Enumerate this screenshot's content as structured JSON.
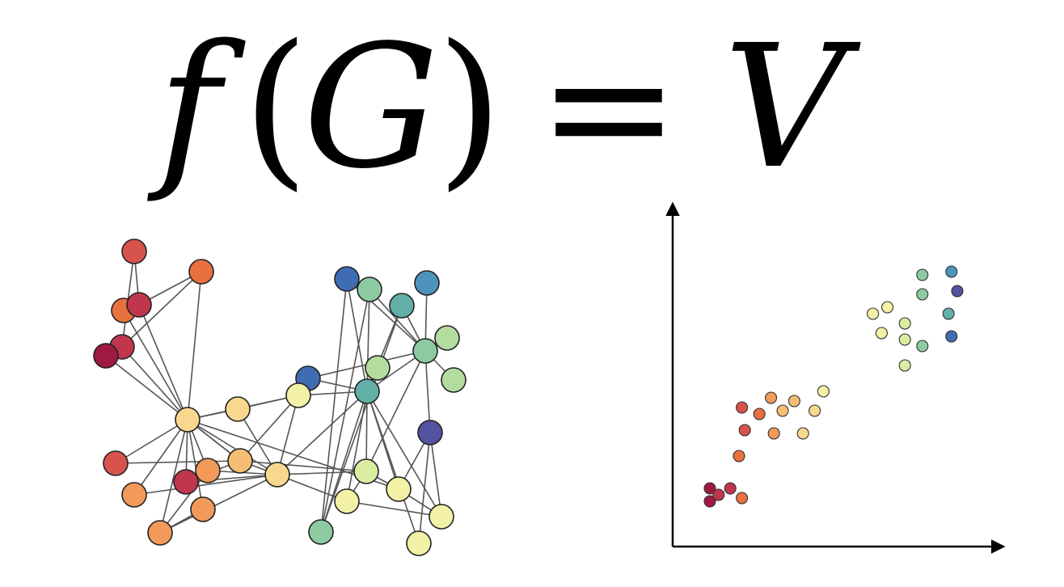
{
  "formula": {
    "f": "f",
    "lparen": "(",
    "G": "G",
    "rparen": ")",
    "eq": "=",
    "V": "V"
  },
  "colors": {
    "c1": "#9e1a42",
    "c2": "#c0374d",
    "c3": "#d6544b",
    "c4": "#e8713f",
    "c5": "#f19a5a",
    "c6": "#f5bd73",
    "c7": "#f7d88e",
    "c8": "#f3f1a6",
    "c9": "#d8eda2",
    "c10": "#b3dd9e",
    "c11": "#8dcaa2",
    "c12": "#62b0a8",
    "c13": "#4d93bb",
    "c14": "#3f6cb3",
    "c15": "#5453a1"
  },
  "graph": {
    "nodes": [
      {
        "id": 0,
        "color": "c3"
      },
      {
        "id": 1,
        "color": "c4"
      },
      {
        "id": 2,
        "color": "c4"
      },
      {
        "id": 3,
        "color": "c2"
      },
      {
        "id": 4,
        "color": "c2"
      },
      {
        "id": 5,
        "color": "c1"
      },
      {
        "id": 6,
        "color": "c7"
      },
      {
        "id": 7,
        "color": "c7"
      },
      {
        "id": 8,
        "color": "c3"
      },
      {
        "id": 9,
        "color": "c5"
      },
      {
        "id": 10,
        "color": "c2"
      },
      {
        "id": 11,
        "color": "c5"
      },
      {
        "id": 12,
        "color": "c6"
      },
      {
        "id": 13,
        "color": "c5"
      },
      {
        "id": 14,
        "color": "c5"
      },
      {
        "id": 15,
        "color": "c7"
      },
      {
        "id": 16,
        "color": "c14"
      },
      {
        "id": 17,
        "color": "c11"
      },
      {
        "id": 18,
        "color": "c13"
      },
      {
        "id": 19,
        "color": "c12"
      },
      {
        "id": 20,
        "color": "c10"
      },
      {
        "id": 21,
        "color": "c10"
      },
      {
        "id": 22,
        "color": "c11"
      },
      {
        "id": 23,
        "color": "c10"
      },
      {
        "id": 24,
        "color": "c14"
      },
      {
        "id": 25,
        "color": "c8"
      },
      {
        "id": 26,
        "color": "c12"
      },
      {
        "id": 27,
        "color": "c15"
      },
      {
        "id": 28,
        "color": "c9"
      },
      {
        "id": 29,
        "color": "c8"
      },
      {
        "id": 30,
        "color": "c8"
      },
      {
        "id": 31,
        "color": "c11"
      },
      {
        "id": 32,
        "color": "c8"
      },
      {
        "id": 33,
        "color": "c8"
      }
    ],
    "edges": [
      [
        0,
        3
      ],
      [
        0,
        4
      ],
      [
        1,
        3
      ],
      [
        1,
        4
      ],
      [
        2,
        6
      ],
      [
        3,
        6
      ],
      [
        4,
        6
      ],
      [
        5,
        6
      ],
      [
        1,
        6
      ],
      [
        8,
        6
      ],
      [
        9,
        6
      ],
      [
        10,
        6
      ],
      [
        11,
        6
      ],
      [
        12,
        6
      ],
      [
        13,
        6
      ],
      [
        14,
        6
      ],
      [
        15,
        6
      ],
      [
        7,
        6
      ],
      [
        10,
        11
      ],
      [
        10,
        12
      ],
      [
        10,
        15
      ],
      [
        11,
        15
      ],
      [
        12,
        15
      ],
      [
        13,
        14
      ],
      [
        11,
        14
      ],
      [
        14,
        15
      ],
      [
        9,
        15
      ],
      [
        16,
        22
      ],
      [
        16,
        26
      ],
      [
        17,
        22
      ],
      [
        18,
        22
      ],
      [
        19,
        22
      ],
      [
        20,
        22
      ],
      [
        21,
        22
      ],
      [
        22,
        26
      ],
      [
        19,
        26
      ],
      [
        17,
        26
      ],
      [
        16,
        31
      ],
      [
        17,
        31
      ],
      [
        19,
        31
      ],
      [
        22,
        24
      ],
      [
        24,
        26
      ],
      [
        24,
        25
      ],
      [
        25,
        26
      ],
      [
        25,
        15
      ],
      [
        26,
        15
      ],
      [
        26,
        28
      ],
      [
        26,
        29
      ],
      [
        26,
        30
      ],
      [
        26,
        31
      ],
      [
        22,
        28
      ],
      [
        22,
        27
      ],
      [
        23,
        26
      ],
      [
        26,
        32
      ],
      [
        26,
        33
      ],
      [
        27,
        30
      ],
      [
        27,
        32
      ],
      [
        27,
        33
      ],
      [
        28,
        30
      ],
      [
        29,
        28
      ],
      [
        15,
        29
      ],
      [
        15,
        28
      ],
      [
        7,
        15
      ],
      [
        7,
        25
      ],
      [
        6,
        12
      ],
      [
        6,
        25
      ],
      [
        6,
        30
      ],
      [
        8,
        12
      ],
      [
        12,
        28
      ],
      [
        25,
        12
      ],
      [
        32,
        29
      ],
      [
        30,
        32
      ]
    ]
  },
  "scatter": {
    "points": [
      {
        "x": 1.0,
        "y": 1.3,
        "color": "c1"
      },
      {
        "x": 1.0,
        "y": 0.9,
        "color": "c1"
      },
      {
        "x": 1.3,
        "y": 1.1,
        "color": "c2"
      },
      {
        "x": 1.7,
        "y": 1.3,
        "color": "c2"
      },
      {
        "x": 2.1,
        "y": 1.0,
        "color": "c4"
      },
      {
        "x": 2.0,
        "y": 2.3,
        "color": "c4"
      },
      {
        "x": 2.1,
        "y": 3.8,
        "color": "c3"
      },
      {
        "x": 2.2,
        "y": 3.1,
        "color": "c3"
      },
      {
        "x": 2.7,
        "y": 3.6,
        "color": "c4"
      },
      {
        "x": 3.1,
        "y": 4.1,
        "color": "c5"
      },
      {
        "x": 3.2,
        "y": 3.0,
        "color": "c5"
      },
      {
        "x": 3.5,
        "y": 3.7,
        "color": "c6"
      },
      {
        "x": 3.9,
        "y": 4.0,
        "color": "c6"
      },
      {
        "x": 4.2,
        "y": 3.0,
        "color": "c7"
      },
      {
        "x": 4.6,
        "y": 3.7,
        "color": "c7"
      },
      {
        "x": 4.9,
        "y": 4.3,
        "color": "c8"
      },
      {
        "x": 6.6,
        "y": 6.7,
        "color": "c8"
      },
      {
        "x": 6.9,
        "y": 6.1,
        "color": "c8"
      },
      {
        "x": 7.1,
        "y": 6.9,
        "color": "c8"
      },
      {
        "x": 7.7,
        "y": 5.9,
        "color": "c9"
      },
      {
        "x": 7.7,
        "y": 6.4,
        "color": "c9"
      },
      {
        "x": 7.7,
        "y": 5.1,
        "color": "c9"
      },
      {
        "x": 8.3,
        "y": 5.7,
        "color": "c11"
      },
      {
        "x": 8.3,
        "y": 7.3,
        "color": "c11"
      },
      {
        "x": 8.3,
        "y": 7.9,
        "color": "c11"
      },
      {
        "x": 9.2,
        "y": 6.7,
        "color": "c12"
      },
      {
        "x": 9.3,
        "y": 8.0,
        "color": "c13"
      },
      {
        "x": 9.3,
        "y": 6.0,
        "color": "c14"
      },
      {
        "x": 9.5,
        "y": 7.4,
        "color": "c15"
      }
    ]
  }
}
